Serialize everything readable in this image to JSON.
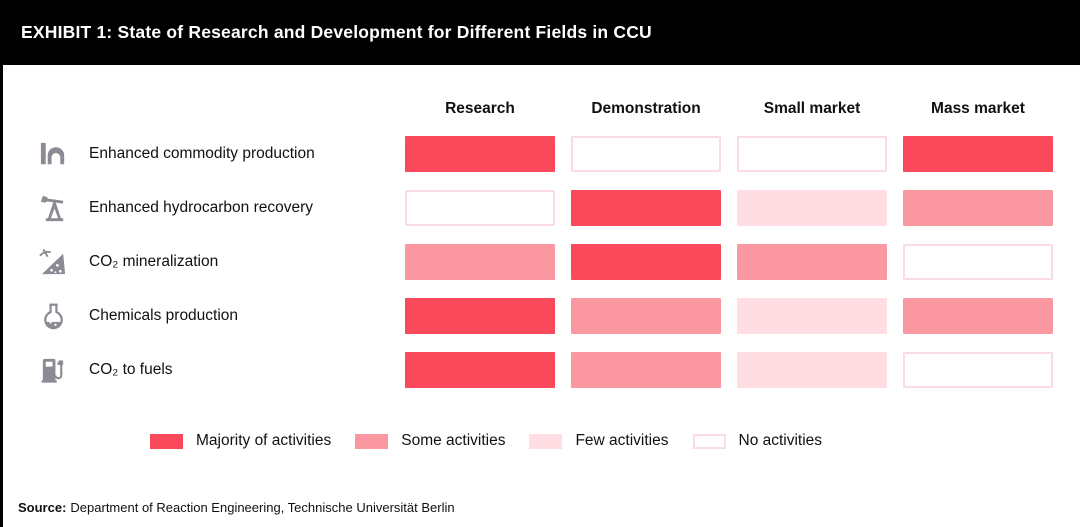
{
  "title": "EXHIBIT 1: State of Research and Development for Different Fields in CCU",
  "columns": [
    "Research",
    "Demonstration",
    "Small market",
    "Mass market"
  ],
  "rows": [
    {
      "icon": "factory-icon",
      "label": "Enhanced commodity production",
      "cells": [
        "majority",
        "none",
        "none",
        "majority"
      ]
    },
    {
      "icon": "oil-pump-icon",
      "label": "Enhanced hydrocarbon recovery",
      "cells": [
        "none",
        "majority",
        "few",
        "some"
      ]
    },
    {
      "icon": "mineral-icon",
      "label": "CO₂ mineralization",
      "cells": [
        "some",
        "majority",
        "some",
        "none"
      ]
    },
    {
      "icon": "flask-icon",
      "label": "Chemicals production",
      "cells": [
        "majority",
        "some",
        "few",
        "some"
      ]
    },
    {
      "icon": "fuel-pump-icon",
      "label": "CO₂ to fuels",
      "cells": [
        "majority",
        "some",
        "few",
        "none"
      ]
    }
  ],
  "legend": [
    {
      "state": "majority",
      "label": "Majority of activities"
    },
    {
      "state": "some",
      "label": "Some activities"
    },
    {
      "state": "few",
      "label": "Few activities"
    },
    {
      "state": "none",
      "label": "No activities"
    }
  ],
  "colors": {
    "majority": "#F9495B",
    "some": "#FA97A1",
    "few": "#FFDDE2",
    "none": "#FFFFFF",
    "none_border": "#FBDCE2",
    "icon_gray": "#8B8B94",
    "header_bg": "#000000",
    "header_text": "#FFFFFF"
  },
  "source": {
    "prefix": "Source:",
    "text": "Department of Reaction Engineering, Technische Universität Berlin"
  },
  "chart_data": {
    "type": "heatmap",
    "title": "EXHIBIT 1: State of Research and Development for Different Fields in CCU",
    "x_categories": [
      "Research",
      "Demonstration",
      "Small market",
      "Mass market"
    ],
    "y_categories": [
      "Enhanced commodity production",
      "Enhanced hydrocarbon recovery",
      "CO₂ mineralization",
      "Chemicals production",
      "CO₂ to fuels"
    ],
    "values": [
      [
        "majority",
        "none",
        "none",
        "majority"
      ],
      [
        "none",
        "majority",
        "few",
        "some"
      ],
      [
        "some",
        "majority",
        "some",
        "none"
      ],
      [
        "majority",
        "some",
        "few",
        "some"
      ],
      [
        "majority",
        "some",
        "few",
        "none"
      ]
    ],
    "scale": [
      {
        "level": "majority",
        "label": "Majority of activities",
        "color": "#F9495B"
      },
      {
        "level": "some",
        "label": "Some activities",
        "color": "#FA97A1"
      },
      {
        "level": "few",
        "label": "Few activities",
        "color": "#FFDDE2"
      },
      {
        "level": "none",
        "label": "No activities",
        "color": "#FFFFFF"
      }
    ],
    "legend_position": "bottom",
    "source": "Department of Reaction Engineering, Technische Universität Berlin"
  }
}
